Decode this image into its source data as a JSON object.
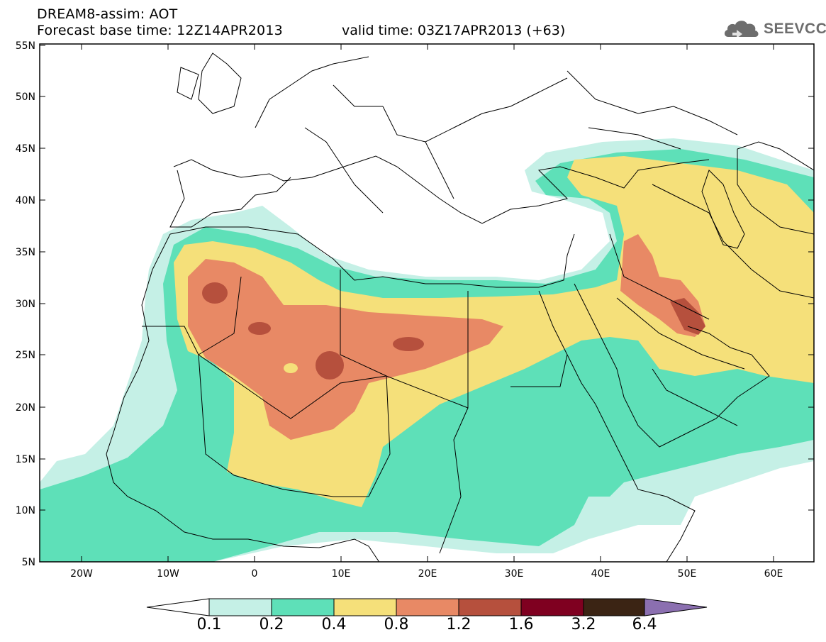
{
  "header": {
    "line1": "DREAM8-assim: AOT",
    "line2": "Forecast base time: 12Z14APR2013",
    "valid": "valid time: 03Z17APR2013 (+63)"
  },
  "logo": {
    "text": "SEEVCCC",
    "icon": "cloud-logo-icon",
    "color": "#6d6d6d"
  },
  "axes": {
    "lat_labels": [
      "55N",
      "50N",
      "45N",
      "40N",
      "35N",
      "30N",
      "25N",
      "20N",
      "15N",
      "10N",
      "5N"
    ],
    "lon_labels": [
      "20W",
      "10W",
      "0",
      "10E",
      "20E",
      "30E",
      "40E",
      "50E",
      "60E"
    ]
  },
  "legend": {
    "levels": [
      "0.1",
      "0.2",
      "0.4",
      "0.8",
      "1.2",
      "1.6",
      "3.2",
      "6.4"
    ],
    "colors": [
      "#c5f0e6",
      "#5ee0b8",
      "#f5e07a",
      "#e88965",
      "#b6503d",
      "#7f0020",
      "#3b2414",
      "#8b6fb0"
    ]
  }
}
